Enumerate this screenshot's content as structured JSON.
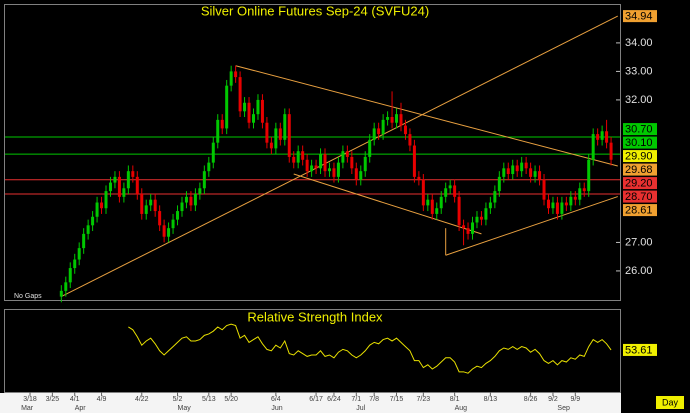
{
  "chart_data": {
    "type": "candlestick",
    "title": "Silver Online Futures Sep-24 (SVFU24)",
    "note": "No Gaps",
    "x_axis_label": "Day",
    "xlim": [
      -12.6,
      125
    ],
    "xticks": [
      {
        "value": -7,
        "label": "3/18"
      },
      {
        "value": -2,
        "label": "3/25"
      },
      {
        "value": 3,
        "label": "4/1"
      },
      {
        "value": 9,
        "label": "4/9"
      },
      {
        "value": 18,
        "label": "4/22"
      },
      {
        "value": 26,
        "label": "5/2"
      },
      {
        "value": 33,
        "label": "5/13"
      },
      {
        "value": 38,
        "label": "5/20"
      },
      {
        "value": 48,
        "label": "6/4"
      },
      {
        "value": 57,
        "label": "6/17"
      },
      {
        "value": 61,
        "label": "6/24"
      },
      {
        "value": 66,
        "label": "7/1"
      },
      {
        "value": 70,
        "label": "7/8"
      },
      {
        "value": 75,
        "label": "7/15"
      },
      {
        "value": 81,
        "label": "7/23"
      },
      {
        "value": 88,
        "label": "8/1"
      },
      {
        "value": 96,
        "label": "8/13"
      },
      {
        "value": 105,
        "label": "8/26"
      },
      {
        "value": 110,
        "label": "9/2"
      },
      {
        "value": 115,
        "label": "9/9"
      }
    ],
    "month_ticks": [
      {
        "value": -9,
        "label": "Mar"
      },
      {
        "value": 3,
        "label": "Apr"
      },
      {
        "value": 26,
        "label": "May"
      },
      {
        "value": 47,
        "label": "Jun"
      },
      {
        "value": 66,
        "label": "Jul"
      },
      {
        "value": 88,
        "label": "Aug"
      },
      {
        "value": 111,
        "label": "Sep"
      }
    ],
    "ylim": [
      24.98,
      35.33
    ],
    "yticks": [
      {
        "value": 26,
        "label": "26.00"
      },
      {
        "value": 27,
        "label": "27.00"
      },
      {
        "value": 32,
        "label": "32.00"
      },
      {
        "value": 33,
        "label": "33.00"
      },
      {
        "value": 34,
        "label": "34.00"
      }
    ],
    "up_color": "#00c800",
    "down_color": "#e80000",
    "trend_color": "#e8a040",
    "ohlc": [
      [
        25.1,
        25.5,
        24.9,
        25.3
      ],
      [
        25.3,
        25.8,
        25.1,
        25.6
      ],
      [
        25.6,
        26.3,
        25.4,
        26.1
      ],
      [
        26.1,
        26.6,
        25.9,
        26.4
      ],
      [
        26.4,
        27.0,
        26.2,
        26.8
      ],
      [
        26.8,
        27.5,
        26.6,
        27.3
      ],
      [
        27.3,
        27.8,
        27.1,
        27.6
      ],
      [
        27.6,
        28.1,
        27.4,
        27.9
      ],
      [
        27.9,
        28.6,
        27.7,
        28.4
      ],
      [
        28.4,
        28.6,
        28.0,
        28.2
      ],
      [
        28.2,
        29.0,
        28.0,
        28.8
      ],
      [
        28.8,
        29.3,
        28.6,
        29.1
      ],
      [
        29.1,
        29.5,
        28.9,
        29.3
      ],
      [
        29.3,
        29.5,
        28.4,
        28.6
      ],
      [
        28.6,
        29.1,
        28.4,
        28.9
      ],
      [
        28.9,
        29.7,
        28.7,
        29.5
      ],
      [
        29.5,
        29.7,
        29.1,
        29.3
      ],
      [
        29.3,
        29.5,
        28.5,
        28.7
      ],
      [
        28.7,
        28.9,
        27.8,
        28.0
      ],
      [
        28.0,
        28.5,
        27.8,
        28.3
      ],
      [
        28.3,
        28.7,
        28.1,
        28.5
      ],
      [
        28.5,
        28.7,
        27.9,
        28.1
      ],
      [
        28.1,
        28.3,
        27.4,
        27.6
      ],
      [
        27.6,
        27.8,
        27.0,
        27.2
      ],
      [
        27.2,
        27.7,
        27.0,
        27.5
      ],
      [
        27.5,
        28.0,
        27.3,
        27.8
      ],
      [
        27.8,
        28.3,
        27.6,
        28.1
      ],
      [
        28.1,
        28.6,
        27.9,
        28.4
      ],
      [
        28.4,
        28.8,
        28.2,
        28.6
      ],
      [
        28.6,
        28.8,
        28.1,
        28.3
      ],
      [
        28.3,
        28.9,
        28.1,
        28.7
      ],
      [
        28.7,
        29.1,
        28.5,
        28.9
      ],
      [
        28.9,
        29.7,
        28.7,
        29.5
      ],
      [
        29.5,
        30.0,
        29.3,
        29.8
      ],
      [
        29.8,
        30.7,
        29.6,
        30.5
      ],
      [
        30.5,
        31.5,
        30.3,
        31.3
      ],
      [
        31.3,
        31.5,
        30.8,
        31.0
      ],
      [
        31.0,
        32.7,
        30.8,
        32.5
      ],
      [
        32.5,
        33.2,
        32.3,
        33.0
      ],
      [
        33.0,
        33.2,
        32.6,
        32.8
      ],
      [
        32.8,
        33.0,
        31.4,
        31.6
      ],
      [
        31.6,
        32.1,
        31.4,
        31.9
      ],
      [
        31.9,
        32.1,
        31.0,
        31.2
      ],
      [
        31.2,
        31.7,
        31.0,
        31.5
      ],
      [
        31.5,
        32.2,
        31.3,
        32.0
      ],
      [
        32.0,
        32.2,
        31.0,
        31.2
      ],
      [
        31.2,
        31.4,
        30.3,
        30.5
      ],
      [
        30.5,
        30.7,
        30.1,
        30.3
      ],
      [
        30.3,
        31.2,
        30.1,
        31.0
      ],
      [
        31.0,
        31.2,
        30.4,
        30.6
      ],
      [
        30.6,
        31.7,
        30.4,
        31.5
      ],
      [
        31.5,
        31.7,
        29.8,
        30.0
      ],
      [
        30.0,
        30.2,
        29.6,
        29.8
      ],
      [
        29.8,
        30.4,
        29.6,
        30.2
      ],
      [
        30.2,
        30.4,
        29.7,
        29.9
      ],
      [
        29.9,
        30.1,
        29.3,
        29.5
      ],
      [
        29.5,
        29.9,
        29.3,
        29.7
      ],
      [
        29.7,
        29.9,
        29.4,
        29.6
      ],
      [
        29.6,
        30.3,
        29.4,
        30.1
      ],
      [
        30.1,
        30.3,
        29.3,
        29.5
      ],
      [
        29.5,
        29.8,
        29.3,
        29.6
      ],
      [
        29.6,
        29.8,
        29.1,
        29.3
      ],
      [
        29.3,
        30.0,
        29.1,
        29.8
      ],
      [
        29.8,
        30.4,
        29.6,
        30.2
      ],
      [
        30.2,
        30.4,
        29.8,
        30.0
      ],
      [
        30.0,
        30.2,
        29.4,
        29.6
      ],
      [
        29.6,
        29.8,
        29.0,
        29.2
      ],
      [
        29.2,
        29.7,
        29.0,
        29.5
      ],
      [
        29.5,
        30.2,
        29.3,
        30.0
      ],
      [
        30.0,
        30.8,
        29.8,
        30.6
      ],
      [
        30.6,
        31.2,
        30.4,
        31.0
      ],
      [
        31.0,
        31.2,
        30.6,
        30.8
      ],
      [
        30.8,
        31.5,
        30.6,
        31.3
      ],
      [
        31.3,
        31.6,
        31.1,
        31.4
      ],
      [
        31.4,
        32.3,
        31.0,
        31.2
      ],
      [
        31.2,
        31.7,
        31.0,
        31.5
      ],
      [
        31.5,
        31.9,
        30.9,
        31.1
      ],
      [
        31.1,
        31.3,
        30.6,
        30.8
      ],
      [
        30.8,
        31.0,
        30.2,
        30.4
      ],
      [
        30.4,
        30.6,
        29.1,
        29.3
      ],
      [
        29.3,
        29.5,
        29.0,
        29.2
      ],
      [
        29.2,
        29.4,
        28.1,
        28.3
      ],
      [
        28.3,
        28.7,
        28.1,
        28.5
      ],
      [
        28.5,
        28.7,
        27.8,
        28.0
      ],
      [
        28.0,
        28.4,
        27.8,
        28.2
      ],
      [
        28.2,
        28.8,
        28.0,
        28.6
      ],
      [
        28.6,
        29.1,
        28.4,
        28.9
      ],
      [
        28.9,
        29.2,
        28.7,
        29.0
      ],
      [
        29.0,
        29.2,
        28.4,
        28.6
      ],
      [
        28.6,
        28.8,
        27.4,
        27.6
      ],
      [
        27.6,
        27.8,
        26.9,
        27.5
      ],
      [
        27.5,
        27.7,
        27.1,
        27.3
      ],
      [
        27.3,
        27.9,
        27.1,
        27.7
      ],
      [
        27.7,
        28.1,
        27.5,
        27.9
      ],
      [
        27.9,
        28.1,
        27.6,
        27.8
      ],
      [
        27.8,
        28.4,
        27.6,
        28.2
      ],
      [
        28.2,
        28.6,
        28.0,
        28.4
      ],
      [
        28.4,
        29.0,
        28.2,
        28.8
      ],
      [
        28.8,
        29.5,
        28.6,
        29.3
      ],
      [
        29.3,
        29.8,
        29.1,
        29.6
      ],
      [
        29.6,
        29.8,
        29.2,
        29.4
      ],
      [
        29.4,
        29.9,
        29.2,
        29.7
      ],
      [
        29.7,
        29.9,
        29.3,
        29.5
      ],
      [
        29.5,
        30.0,
        29.3,
        29.8
      ],
      [
        29.8,
        30.0,
        29.4,
        29.6
      ],
      [
        29.6,
        29.8,
        29.1,
        29.3
      ],
      [
        29.3,
        29.7,
        29.1,
        29.5
      ],
      [
        29.5,
        29.7,
        29.0,
        29.2
      ],
      [
        29.2,
        29.4,
        28.3,
        28.5
      ],
      [
        28.5,
        28.7,
        28.0,
        28.2
      ],
      [
        28.2,
        28.6,
        28.0,
        28.4
      ],
      [
        28.4,
        28.6,
        27.8,
        28.0
      ],
      [
        28.0,
        28.6,
        27.8,
        28.4
      ],
      [
        28.4,
        28.6,
        28.1,
        28.3
      ],
      [
        28.3,
        28.8,
        28.1,
        28.6
      ],
      [
        28.6,
        28.8,
        28.3,
        28.5
      ],
      [
        28.5,
        29.1,
        28.3,
        28.9
      ],
      [
        28.9,
        29.1,
        28.6,
        28.8
      ],
      [
        28.8,
        30.1,
        28.6,
        29.9
      ],
      [
        29.9,
        31.0,
        29.7,
        30.8
      ],
      [
        30.8,
        31.0,
        30.4,
        30.6
      ],
      [
        30.6,
        31.1,
        30.4,
        30.9
      ],
      [
        30.9,
        31.3,
        30.3,
        30.5
      ],
      [
        30.5,
        30.7,
        29.7,
        29.9
      ]
    ],
    "levels": [
      {
        "value": 30.7,
        "label": "30.70",
        "color": "#00c800"
      },
      {
        "value": 30.1,
        "label": "30.10",
        "color": "#00c800"
      },
      {
        "value": 29.2,
        "label": "29.20",
        "color": "#e83030"
      },
      {
        "value": 28.7,
        "label": "28.70",
        "color": "#e83030"
      }
    ],
    "price_labels": [
      {
        "value": 34.94,
        "label": "34.94",
        "color": "#f0a030"
      },
      {
        "value": 29.9,
        "label": "29.90",
        "color": "#f0f000"
      },
      {
        "value": 29.68,
        "label": "29.68",
        "color": "#f0a030"
      },
      {
        "value": 28.61,
        "label": "28.61",
        "color": "#f0a030"
      }
    ],
    "trend_lines": [
      {
        "x": [
          0,
          124.5
        ],
        "y": [
          25.1,
          34.94
        ]
      },
      {
        "x": [
          39,
          124.5
        ],
        "y": [
          33.2,
          29.68
        ]
      },
      {
        "x": [
          52,
          94
        ],
        "y": [
          29.4,
          27.3
        ]
      },
      {
        "x": [
          86,
          86
        ],
        "y": [
          27.5,
          26.55
        ]
      },
      {
        "x": [
          86,
          124.5
        ],
        "y": [
          26.55,
          28.61
        ]
      }
    ],
    "rsi": {
      "title": "Relative Strength Index",
      "color": "#e8e000",
      "label_color": "#f0f000",
      "ylim": [
        23.6,
        82.1
      ],
      "values": [
        null,
        null,
        null,
        null,
        null,
        null,
        null,
        null,
        null,
        null,
        null,
        null,
        null,
        null,
        null,
        70,
        68,
        63,
        57,
        60,
        62,
        58,
        53,
        50,
        53,
        56,
        59,
        62,
        63,
        60,
        60,
        61,
        64,
        65,
        67,
        70,
        68,
        71,
        72,
        71,
        62,
        64,
        59,
        61,
        63,
        58,
        54,
        53,
        57,
        55,
        60,
        51,
        50,
        53,
        51,
        49,
        50,
        50,
        53,
        49,
        50,
        48,
        52,
        54,
        53,
        50,
        48,
        50,
        53,
        57,
        59,
        58,
        61,
        62,
        60,
        62,
        59,
        56,
        53,
        46,
        46,
        41,
        43,
        40,
        42,
        45,
        48,
        48,
        45,
        38,
        38,
        37,
        40,
        42,
        41,
        44,
        46,
        49,
        53,
        55,
        54,
        56,
        54,
        56,
        55,
        52,
        54,
        51,
        46,
        44,
        46,
        43,
        46,
        45,
        48,
        47,
        50,
        49,
        56,
        61,
        59,
        61,
        58,
        53.61
      ]
    }
  }
}
